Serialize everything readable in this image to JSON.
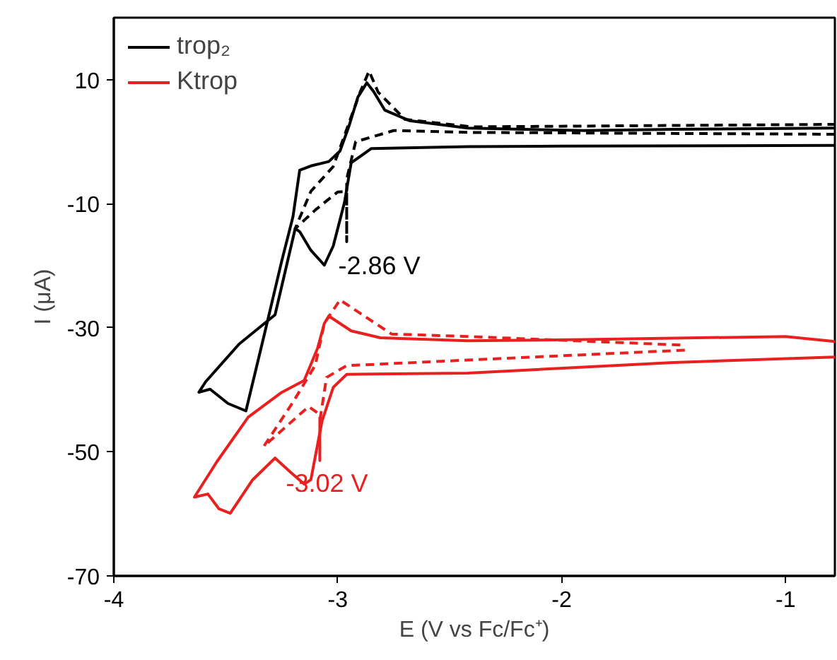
{
  "chart_data": {
    "type": "line",
    "xlabel": "E (V vs Fc/Fc⁺)",
    "ylabel": "I (μA)",
    "xlim": [
      -4,
      -0.78
    ],
    "ylim": [
      -70,
      20
    ],
    "xticks": [
      -4,
      -3,
      -2,
      -1
    ],
    "yticks": [
      -70,
      -50,
      -30,
      -10,
      10
    ],
    "grid": false,
    "legend": "top left",
    "series": [
      {
        "name": "trop₂",
        "color": "#000000",
        "line_style": "solid",
        "x": [
          -0.78,
          -2.0,
          -2.42,
          -2.85,
          -2.94,
          -2.97,
          -3.02,
          -3.06,
          -3.12,
          -3.17,
          -3.19,
          -3.28,
          -3.44,
          -3.59,
          -3.62,
          -3.57,
          -3.49,
          -3.41,
          -3.33,
          -3.25,
          -3.2,
          -3.17,
          -3.12,
          -3.04,
          -2.99,
          -2.95,
          -2.91,
          -2.87,
          -2.84,
          -2.79,
          -2.68,
          -2.42,
          -1.9,
          -1.5,
          -0.78
        ],
        "values": [
          -0.6,
          -0.7,
          -0.8,
          -1.1,
          -3.4,
          -9.8,
          -16.8,
          -19.9,
          -17.5,
          -14.5,
          -14,
          -27.9,
          -32.6,
          -38.7,
          -40.4,
          -39.9,
          -42.2,
          -43.4,
          -31.4,
          -19.2,
          -12.1,
          -4.6,
          -3.9,
          -3.2,
          -1.5,
          2.5,
          7.2,
          9.5,
          8.1,
          5.1,
          3.4,
          2.2,
          1.8,
          2.0,
          2.2
        ]
      },
      {
        "name": "Ktrop",
        "color": "#e8201f",
        "line_style": "solid",
        "x": [
          -0.78,
          -1.0,
          -1.9,
          -2.42,
          -2.81,
          -2.94,
          -3.04,
          -3.06,
          -3.09,
          -3.15,
          -3.25,
          -3.4,
          -3.54,
          -3.64,
          -3.58,
          -3.53,
          -3.48,
          -3.38,
          -3.28,
          -3.21,
          -3.15,
          -3.12,
          -3.07,
          -3.02,
          -2.96,
          -2.42,
          -1.5,
          -0.78
        ],
        "values": [
          -32.2,
          -31.4,
          -31.9,
          -32.1,
          -31.6,
          -30.5,
          -28.1,
          -29.3,
          -33.3,
          -38.5,
          -40.4,
          -44.4,
          -51.6,
          -57.3,
          -56.8,
          -59.2,
          -59.9,
          -54.5,
          -51,
          -53.3,
          -55.2,
          -54.5,
          -45,
          -39.6,
          -37.5,
          -37.3,
          -35.6,
          -34.7
        ]
      },
      {
        "color": "#000000",
        "line_style": "dashed",
        "x": [
          -0.78,
          -2.4,
          -2.75,
          -2.92,
          -2.96,
          -2.96,
          -2.96,
          -3.0,
          -3.1,
          -3.19,
          -3.12,
          -3.02,
          -2.96,
          -2.9,
          -2.86,
          -2.82,
          -2.7,
          -2.4,
          -0.78
        ],
        "values": [
          1.2,
          1.5,
          1.8,
          0,
          -6,
          -16.1,
          -8,
          -8.1,
          -11,
          -14,
          -8,
          -4,
          2,
          8,
          11.4,
          8,
          3.6,
          2.4,
          2.8
        ]
      },
      {
        "color": "#e8201f",
        "line_style": "dashed",
        "x": [
          -1.45,
          -2.42,
          -2.96,
          -3.05,
          -3.08,
          -3.08,
          -3.08,
          -3.13,
          -3.33,
          -3.2,
          -3.1,
          -3.06,
          -2.99,
          -2.89,
          -2.76,
          -2.42,
          -1.45
        ],
        "values": [
          -33.6,
          -35.2,
          -36.1,
          -38,
          -45,
          -51.4,
          -44,
          -42.7,
          -49.1,
          -42,
          -36,
          -29.3,
          -25.5,
          -27.9,
          -31,
          -31.4,
          -32.8
        ]
      }
    ],
    "annotations": [
      {
        "text": "-2.86 V",
        "x": -2.96,
        "y": -16.1
      },
      {
        "text": "-3.02 V",
        "x": -3.08,
        "y": -51.4
      }
    ]
  }
}
